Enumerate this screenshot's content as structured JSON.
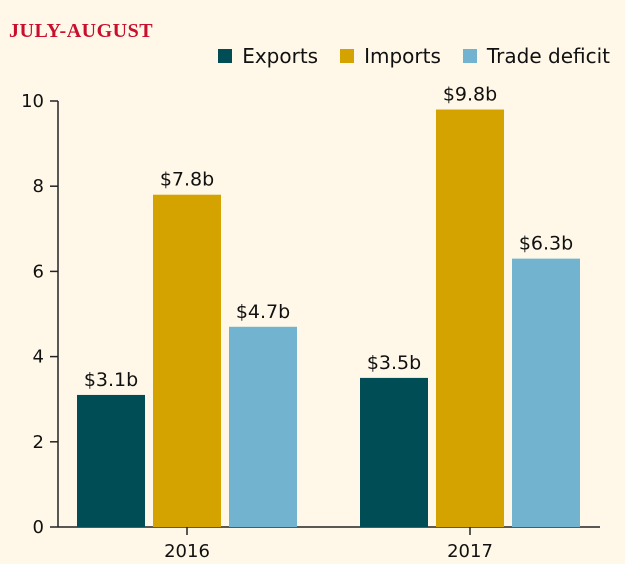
{
  "chart_data": {
    "type": "bar",
    "title": "JULY-AUGUST",
    "categories": [
      "2016",
      "2017"
    ],
    "series": [
      {
        "name": "Exports",
        "color": "#004d55",
        "values": [
          3.1,
          3.5
        ],
        "labels": [
          "$3.1b",
          "$3.5b"
        ]
      },
      {
        "name": "Imports",
        "color": "#d4a300",
        "values": [
          7.8,
          9.8
        ],
        "labels": [
          "$7.8b",
          "$9.8b"
        ]
      },
      {
        "name": "Trade deficit",
        "color": "#72b3cf",
        "values": [
          4.7,
          6.3
        ],
        "labels": [
          "$4.7b",
          "$6.3b"
        ]
      }
    ],
    "ylim": [
      0,
      10
    ],
    "yticks": [
      0,
      2,
      4,
      6,
      8,
      10
    ],
    "ytick_labels": [
      "0",
      "2",
      "4",
      "6",
      "8",
      "10"
    ],
    "grid": false,
    "legend_position": "top-right",
    "background_color": "#fff8e8",
    "title_color": "#c8102e"
  }
}
